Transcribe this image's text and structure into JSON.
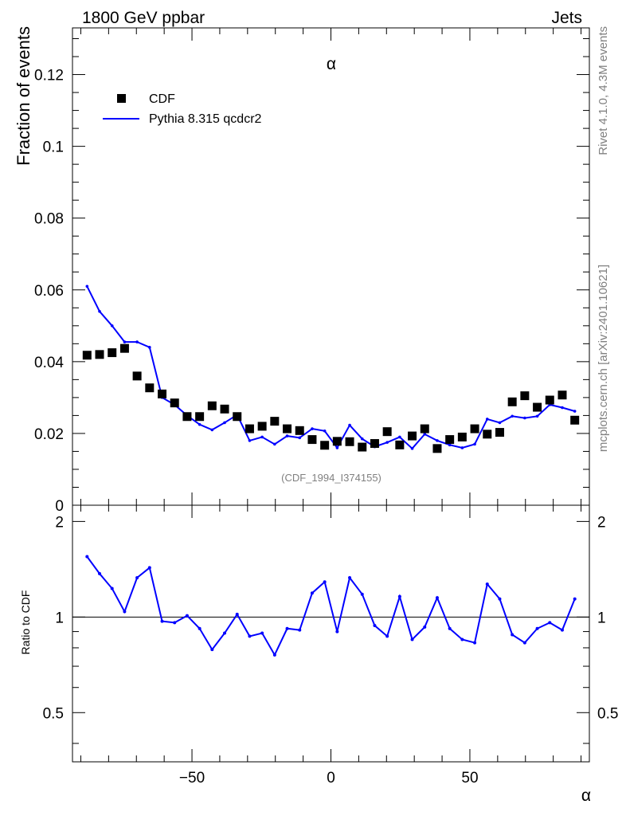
{
  "header": {
    "left": "1800 GeV ppbar",
    "right": "Jets",
    "side_top": "Rivet 4.1.0,  4.3M events",
    "side_bottom": "mcplots.cern.ch [arXiv:2401.10621]"
  },
  "chart_data": [
    {
      "type": "scatter",
      "title": "α",
      "ylabel": "Fraction of events",
      "xlabel": "α",
      "watermark": "(CDF_1994_I374155)",
      "xlim": [
        -93,
        93
      ],
      "ylim": [
        0,
        0.133
      ],
      "yticks": [
        0,
        0.02,
        0.04,
        0.06,
        0.08,
        0.1,
        0.12
      ],
      "yticklabels": [
        "0",
        "0.02",
        "0.04",
        "0.06",
        "0.08",
        "0.1",
        "0.12"
      ],
      "legend_position": "top-left",
      "series": [
        {
          "name": "CDF",
          "style": "markers",
          "x": [
            -87.75,
            -83.25,
            -78.75,
            -74.25,
            -69.75,
            -65.25,
            -60.75,
            -56.25,
            -51.75,
            -47.25,
            -42.75,
            -38.25,
            -33.75,
            -29.25,
            -24.75,
            -20.25,
            -15.75,
            -11.25,
            -6.75,
            -2.25,
            2.25,
            6.75,
            11.25,
            15.75,
            20.25,
            24.75,
            29.25,
            33.75,
            38.25,
            42.75,
            47.25,
            51.75,
            56.25,
            60.75,
            65.25,
            69.75,
            74.25,
            78.75,
            83.25,
            87.75
          ],
          "y": [
            0.0418,
            0.042,
            0.0425,
            0.0437,
            0.036,
            0.0327,
            0.031,
            0.0285,
            0.0247,
            0.0247,
            0.0277,
            0.0268,
            0.0247,
            0.0213,
            0.022,
            0.0234,
            0.0213,
            0.0208,
            0.0183,
            0.0167,
            0.0178,
            0.0177,
            0.0162,
            0.0172,
            0.0205,
            0.0168,
            0.0193,
            0.0213,
            0.0158,
            0.0183,
            0.019,
            0.0213,
            0.0198,
            0.0203,
            0.0288,
            0.0305,
            0.0273,
            0.0293,
            0.0307,
            0.0237
          ]
        },
        {
          "name": "Pythia 8.315 qcdcr2",
          "style": "line",
          "color": "#0000ff",
          "x": [
            -87.75,
            -83.25,
            -78.75,
            -74.25,
            -69.75,
            -65.25,
            -60.75,
            -56.25,
            -51.75,
            -47.25,
            -42.75,
            -38.25,
            -33.75,
            -29.25,
            -24.75,
            -20.25,
            -15.75,
            -11.25,
            -6.75,
            -2.25,
            2.25,
            6.75,
            11.25,
            15.75,
            20.25,
            24.75,
            29.25,
            33.75,
            38.25,
            42.75,
            47.25,
            51.75,
            56.25,
            60.75,
            65.25,
            69.75,
            74.25,
            78.75,
            83.25,
            87.75
          ],
          "y": [
            0.061,
            0.054,
            0.05,
            0.0455,
            0.0455,
            0.044,
            0.03,
            0.028,
            0.025,
            0.0225,
            0.021,
            0.023,
            0.0252,
            0.018,
            0.019,
            0.017,
            0.0193,
            0.0188,
            0.0213,
            0.0207,
            0.016,
            0.0223,
            0.0185,
            0.0163,
            0.0175,
            0.019,
            0.0158,
            0.0198,
            0.018,
            0.0168,
            0.016,
            0.017,
            0.024,
            0.023,
            0.0248,
            0.0243,
            0.0248,
            0.028,
            0.0272,
            0.0262
          ]
        }
      ]
    },
    {
      "type": "line",
      "ylabel": "Ratio to CDF",
      "xlabel": "α",
      "xlim": [
        -93,
        93
      ],
      "ylim": [
        0.35,
        2.25
      ],
      "xticks": [
        -50,
        0,
        50
      ],
      "xticklabels": [
        "−50",
        "0",
        "50"
      ],
      "yticks": [
        0.5,
        1,
        2
      ],
      "yticklabels": [
        "0.5",
        "1",
        "2"
      ],
      "reference_line": 1,
      "series": [
        {
          "name": "Pythia 8.315 qcdcr2 / CDF",
          "color": "#0000ff",
          "x": [
            -87.75,
            -83.25,
            -78.75,
            -74.25,
            -69.75,
            -65.25,
            -60.75,
            -56.25,
            -51.75,
            -47.25,
            -42.75,
            -38.25,
            -33.75,
            -29.25,
            -24.75,
            -20.25,
            -15.75,
            -11.25,
            -6.75,
            -2.25,
            2.25,
            6.75,
            11.25,
            15.75,
            20.25,
            24.75,
            29.25,
            33.75,
            38.25,
            42.75,
            47.25,
            51.75,
            56.25,
            60.75,
            65.25,
            69.75,
            74.25,
            78.75,
            83.25,
            87.75
          ],
          "y": [
            1.55,
            1.37,
            1.23,
            1.04,
            1.33,
            1.43,
            0.97,
            0.96,
            1.01,
            0.92,
            0.79,
            0.89,
            1.02,
            0.87,
            0.89,
            0.76,
            0.92,
            0.91,
            1.19,
            1.29,
            0.9,
            1.33,
            1.18,
            0.94,
            0.87,
            1.16,
            0.85,
            0.93,
            1.15,
            0.92,
            0.85,
            0.83,
            1.27,
            1.14,
            0.88,
            0.83,
            0.92,
            0.96,
            0.91,
            1.14
          ]
        }
      ]
    }
  ]
}
